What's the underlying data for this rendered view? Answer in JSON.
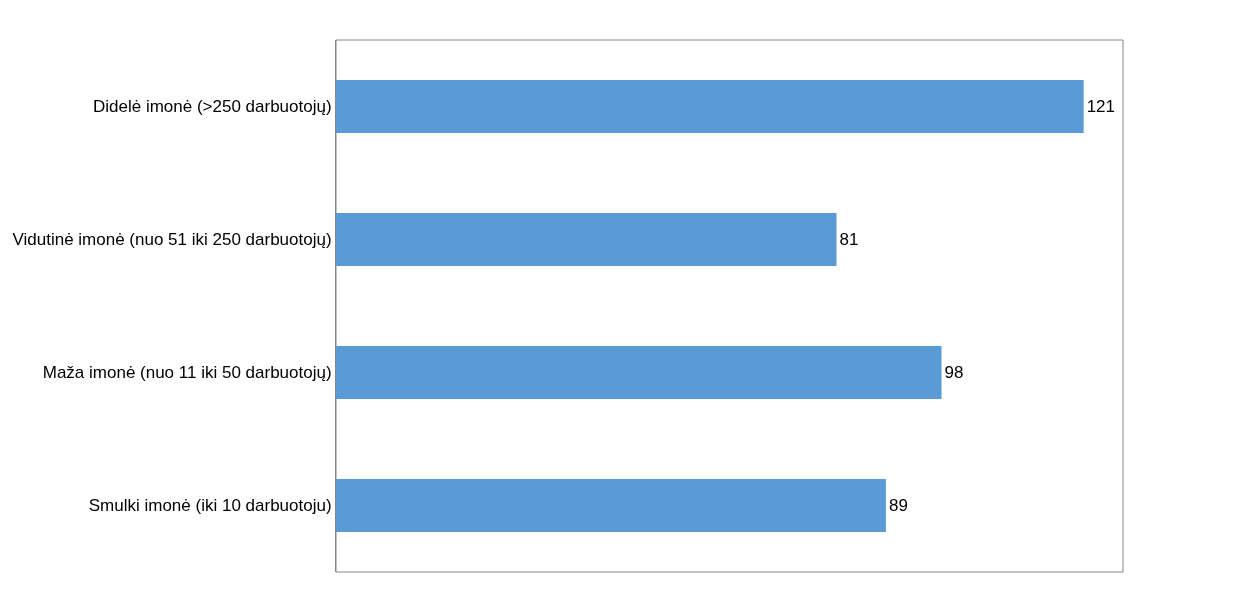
{
  "chart_data": {
    "type": "bar",
    "orientation": "horizontal",
    "categories": [
      "Didelė imonė (>250 darbuotojų)",
      "Vidutinė imonė (nuo 51 iki 250 darbuotojų)",
      "Maža imonė (nuo 11 iki 50 darbuotojų)",
      "Smulki imonė (iki 10 darbuotoju)"
    ],
    "values": [
      121,
      81,
      98,
      89
    ],
    "color": "#5b9bd5",
    "data_labels": true,
    "grid": false,
    "legend": false
  }
}
